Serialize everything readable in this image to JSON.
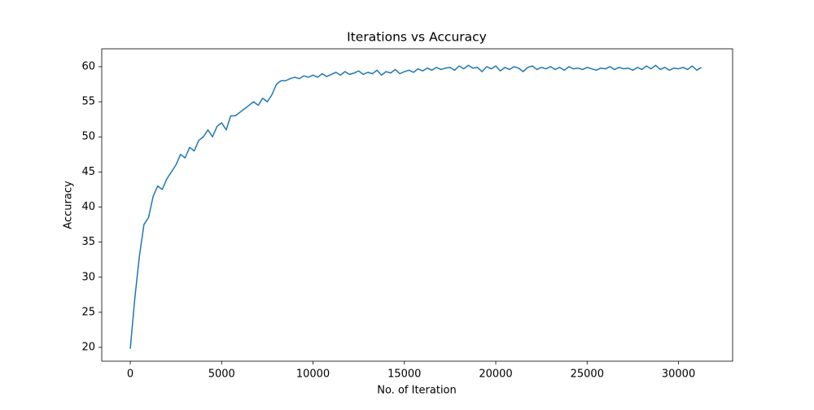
{
  "chart_data": {
    "type": "line",
    "title": "Iterations vs Accuracy",
    "x_label": "No. of Iteration",
    "y_label": "Accuracy",
    "color": "#1f77b4",
    "x": [
      0,
      250,
      500,
      750,
      1000,
      1250,
      1500,
      1750,
      2000,
      2250,
      2500,
      2750,
      3000,
      3250,
      3500,
      3750,
      4000,
      4250,
      4500,
      4750,
      5000,
      5250,
      5500,
      5750,
      6000,
      6250,
      6500,
      6750,
      7000,
      7250,
      7500,
      7750,
      8000,
      8250,
      8500,
      8750,
      9000,
      9250,
      9500,
      9750,
      10000,
      10250,
      10500,
      10750,
      11000,
      11250,
      11500,
      11750,
      12000,
      12250,
      12500,
      12750,
      13000,
      13250,
      13500,
      13750,
      14000,
      14250,
      14500,
      14750,
      15000,
      15250,
      15500,
      15750,
      16000,
      16250,
      16500,
      16750,
      17000,
      17250,
      17500,
      17750,
      18000,
      18250,
      18500,
      18750,
      19000,
      19250,
      19500,
      19750,
      20000,
      20250,
      20500,
      20750,
      21000,
      21250,
      21500,
      21750,
      22000,
      22250,
      22500,
      22750,
      23000,
      23250,
      23500,
      23750,
      24000,
      24250,
      24500,
      24750,
      25000,
      25250,
      25500,
      25750,
      26000,
      26250,
      26500,
      26750,
      27000,
      27250,
      27500,
      27750,
      28000,
      28250,
      28500,
      28750,
      29000,
      29250,
      29500,
      29750,
      30000,
      30250,
      30500,
      30750,
      31000,
      31250
    ],
    "values": [
      19.8,
      27,
      33,
      37.5,
      38.5,
      41.5,
      43,
      42.5,
      44,
      45,
      46,
      47.5,
      47,
      48.5,
      48,
      49.5,
      50,
      51,
      50,
      51.5,
      52,
      51,
      53,
      53,
      53.5,
      54,
      54.5,
      55,
      54.5,
      55.5,
      55,
      56,
      57.5,
      58,
      58,
      58.3,
      58.5,
      58.3,
      58.7,
      58.5,
      58.8,
      58.5,
      59,
      58.6,
      58.9,
      59.2,
      58.8,
      59.3,
      58.9,
      59.1,
      59.4,
      58.9,
      59.2,
      59,
      59.5,
      58.8,
      59.3,
      59.1,
      59.6,
      59,
      59.3,
      59.5,
      59.2,
      59.7,
      59.4,
      59.8,
      59.5,
      59.9,
      59.6,
      59.8,
      59.9,
      59.5,
      60.1,
      59.7,
      60.2,
      59.8,
      59.9,
      59.3,
      60,
      59.7,
      60.1,
      59.4,
      59.9,
      59.6,
      60,
      59.8,
      59.3,
      59.9,
      60.1,
      59.6,
      59.9,
      59.7,
      60,
      59.6,
      59.9,
      59.5,
      60,
      59.7,
      59.8,
      59.6,
      59.9,
      59.7,
      59.5,
      59.8,
      59.7,
      60,
      59.6,
      59.9,
      59.7,
      59.8,
      59.5,
      59.9,
      59.6,
      60.1,
      59.7,
      60.2,
      59.6,
      59.9,
      59.5,
      59.8,
      59.7,
      59.9,
      59.6,
      60.1,
      59.5,
      59.9
    ],
    "xlim": [
      -1560,
      32960
    ],
    "ylim": [
      18.03,
      62.55
    ],
    "xticks": [
      0,
      5000,
      10000,
      15000,
      20000,
      25000,
      30000
    ],
    "yticks": [
      20,
      25,
      30,
      35,
      40,
      45,
      50,
      55,
      60
    ]
  }
}
